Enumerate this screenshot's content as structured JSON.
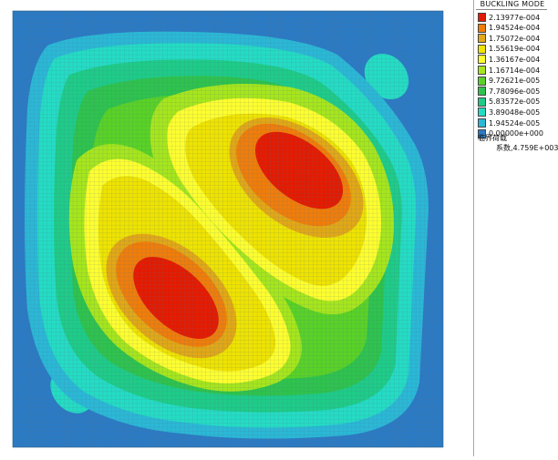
{
  "legend": {
    "title": "BUCKLING MODE",
    "entries": [
      {
        "value": "2.13977e-004",
        "color": "#e41a00"
      },
      {
        "value": "1.94524e-004",
        "color": "#f07d0a"
      },
      {
        "value": "1.75072e-004",
        "color": "#e2a816"
      },
      {
        "value": "1.55619e-004",
        "color": "#efe300"
      },
      {
        "value": "1.36167e-004",
        "color": "#ffff2e"
      },
      {
        "value": "1.16714e-004",
        "color": "#a6e61c"
      },
      {
        "value": "9.72621e-005",
        "color": "#59d226"
      },
      {
        "value": "7.78096e-005",
        "color": "#2ec34d"
      },
      {
        "value": "5.83572e-005",
        "color": "#1ecc88"
      },
      {
        "value": "3.89048e-005",
        "color": "#24dcc4"
      },
      {
        "value": "1.94524e-005",
        "color": "#2ab8d6"
      },
      {
        "value": "0.00000e+000",
        "color": "#2b7ac4"
      }
    ]
  },
  "critical": {
    "label": "临界荷载",
    "value": "系数,4.759E+003"
  },
  "plot": {
    "background_color": "#2b7ac4",
    "mesh_color": "#4f6f86"
  }
}
